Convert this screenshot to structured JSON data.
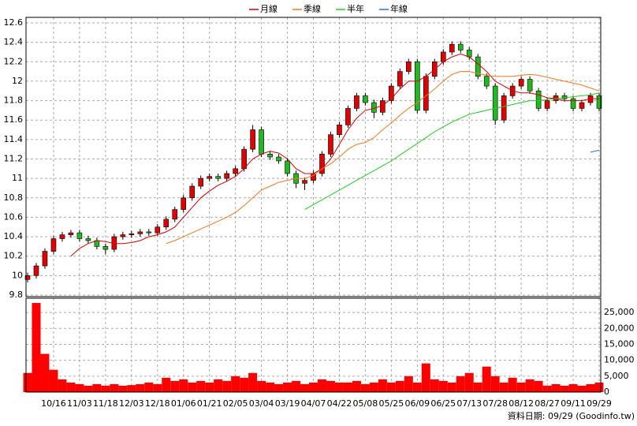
{
  "chart_data": [
    {
      "type": "candlestick",
      "legend": "top",
      "grid": true,
      "up_color": "#e00000",
      "down_color": "#22b822",
      "ylim": [
        9.8,
        12.6
      ],
      "yticks": [
        9.8,
        10,
        10.2,
        10.4,
        10.6,
        10.8,
        11,
        11.2,
        11.4,
        11.6,
        11.8,
        12,
        12.2,
        12.4,
        12.6
      ],
      "open": [
        9.96,
        10.0,
        10.1,
        10.25,
        10.38,
        10.42,
        10.44,
        10.38,
        10.36,
        10.3,
        10.27,
        10.4,
        10.42,
        10.43,
        10.45,
        10.44,
        10.5,
        10.58,
        10.68,
        10.8,
        10.92,
        11.0,
        11.02,
        11.0,
        11.05,
        11.1,
        11.3,
        11.5,
        11.25,
        11.22,
        11.18,
        11.05,
        10.95,
        10.98,
        11.05,
        11.25,
        11.45,
        11.55,
        11.72,
        11.85,
        11.78,
        11.68,
        11.8,
        11.95,
        12.1,
        12.2,
        11.7,
        12.05,
        12.2,
        12.3,
        12.38,
        12.32,
        12.25,
        12.05,
        11.95,
        11.6,
        11.85,
        11.95,
        12.02,
        11.9,
        11.72,
        11.8,
        11.85,
        11.82,
        11.72,
        11.78,
        11.85
      ],
      "close": [
        10.0,
        10.1,
        10.25,
        10.38,
        10.42,
        10.44,
        10.38,
        10.36,
        10.3,
        10.27,
        10.4,
        10.42,
        10.43,
        10.45,
        10.44,
        10.5,
        10.58,
        10.68,
        10.8,
        10.92,
        11.0,
        11.02,
        11.0,
        11.05,
        11.1,
        11.3,
        11.5,
        11.25,
        11.22,
        11.18,
        11.05,
        10.95,
        10.98,
        11.05,
        11.25,
        11.45,
        11.55,
        11.72,
        11.85,
        11.78,
        11.68,
        11.8,
        11.95,
        12.1,
        12.2,
        11.7,
        12.05,
        12.2,
        12.3,
        12.38,
        12.32,
        12.25,
        12.05,
        11.95,
        11.6,
        11.85,
        11.95,
        12.02,
        11.9,
        11.72,
        11.8,
        11.85,
        11.82,
        11.72,
        11.78,
        11.85,
        11.72
      ],
      "high": [
        10.03,
        10.13,
        10.28,
        10.41,
        10.45,
        10.47,
        10.47,
        10.41,
        10.39,
        10.33,
        10.43,
        10.45,
        10.46,
        10.48,
        10.48,
        10.53,
        10.61,
        10.71,
        10.83,
        10.95,
        11.03,
        11.05,
        11.05,
        11.08,
        11.13,
        11.33,
        11.55,
        11.53,
        11.28,
        11.25,
        11.21,
        11.08,
        11.01,
        11.08,
        11.28,
        11.48,
        11.58,
        11.75,
        11.88,
        11.88,
        11.81,
        11.83,
        11.98,
        12.13,
        12.23,
        12.23,
        12.08,
        12.23,
        12.33,
        12.41,
        12.41,
        12.35,
        12.28,
        12.08,
        11.98,
        11.88,
        11.98,
        12.05,
        12.05,
        11.93,
        11.83,
        11.88,
        11.88,
        11.85,
        11.81,
        11.88,
        11.88
      ],
      "low": [
        9.93,
        9.97,
        10.07,
        10.22,
        10.35,
        10.39,
        10.35,
        10.33,
        10.27,
        10.22,
        10.24,
        10.37,
        10.39,
        10.4,
        10.41,
        10.41,
        10.47,
        10.55,
        10.65,
        10.77,
        10.89,
        10.97,
        10.97,
        10.97,
        11.02,
        11.07,
        11.27,
        11.22,
        11.19,
        11.15,
        11.02,
        10.9,
        10.88,
        10.95,
        11.02,
        11.22,
        11.42,
        11.52,
        11.69,
        11.75,
        11.62,
        11.65,
        11.77,
        11.92,
        12.07,
        11.67,
        11.67,
        12.02,
        12.17,
        12.27,
        12.29,
        12.22,
        12.02,
        11.92,
        11.55,
        11.57,
        11.82,
        11.92,
        11.87,
        11.69,
        11.69,
        11.77,
        11.79,
        11.69,
        11.69,
        11.75,
        11.69
      ],
      "series": [
        {
          "name": "月線",
          "color": "#d40000",
          "values": [
            null,
            null,
            null,
            null,
            null,
            10.2,
            10.28,
            10.33,
            10.36,
            10.35,
            10.33,
            10.33,
            10.34,
            10.36,
            10.4,
            10.42,
            10.45,
            10.5,
            10.6,
            10.7,
            10.8,
            10.87,
            10.93,
            10.97,
            11.02,
            11.1,
            11.2,
            11.25,
            11.28,
            11.26,
            11.2,
            11.1,
            11.05,
            11.05,
            11.1,
            11.2,
            11.35,
            11.5,
            11.62,
            11.7,
            11.72,
            11.75,
            11.82,
            11.92,
            12.0,
            12.0,
            12.05,
            12.12,
            12.2,
            12.25,
            12.28,
            12.25,
            12.18,
            12.1,
            12.0,
            11.95,
            11.9,
            11.88,
            11.88,
            11.86,
            11.83,
            11.82,
            11.8,
            11.8,
            11.8,
            11.82,
            11.82
          ]
        },
        {
          "name": "季線",
          "color": "#f07820",
          "values": [
            null,
            null,
            null,
            null,
            null,
            null,
            null,
            null,
            null,
            null,
            null,
            null,
            null,
            null,
            null,
            null,
            10.33,
            10.36,
            10.4,
            10.44,
            10.48,
            10.52,
            10.56,
            10.6,
            10.65,
            10.72,
            10.8,
            10.88,
            10.92,
            10.96,
            10.98,
            11.0,
            11.0,
            11.03,
            11.1,
            11.15,
            11.22,
            11.3,
            11.35,
            11.37,
            11.42,
            11.5,
            11.57,
            11.65,
            11.72,
            11.78,
            11.85,
            11.92,
            12.0,
            12.07,
            12.1,
            12.1,
            12.08,
            12.06,
            12.05,
            12.05,
            12.05,
            12.06,
            12.07,
            12.06,
            12.04,
            12.02,
            12.0,
            11.98,
            11.96,
            11.93,
            11.9
          ]
        },
        {
          "name": "半年",
          "color": "#22cc22",
          "values": [
            null,
            null,
            null,
            null,
            null,
            null,
            null,
            null,
            null,
            null,
            null,
            null,
            null,
            null,
            null,
            null,
            null,
            null,
            null,
            null,
            null,
            null,
            null,
            null,
            null,
            null,
            null,
            null,
            null,
            null,
            null,
            null,
            10.68,
            10.73,
            10.78,
            10.83,
            10.88,
            10.93,
            10.98,
            11.03,
            11.08,
            11.13,
            11.18,
            11.24,
            11.3,
            11.36,
            11.42,
            11.48,
            11.53,
            11.58,
            11.62,
            11.66,
            11.68,
            11.7,
            11.72,
            11.74,
            11.76,
            11.78,
            11.8,
            11.8,
            11.81,
            11.82,
            11.83,
            11.84,
            11.85,
            11.86,
            11.88
          ]
        },
        {
          "name": "年線",
          "color": "#2f6fd0",
          "values": [
            null,
            null,
            null,
            null,
            null,
            null,
            null,
            null,
            null,
            null,
            null,
            null,
            null,
            null,
            null,
            null,
            null,
            null,
            null,
            null,
            null,
            null,
            null,
            null,
            null,
            null,
            null,
            null,
            null,
            null,
            null,
            null,
            null,
            null,
            null,
            null,
            null,
            null,
            null,
            null,
            null,
            null,
            null,
            null,
            null,
            null,
            null,
            null,
            null,
            null,
            null,
            null,
            null,
            null,
            null,
            null,
            null,
            null,
            null,
            null,
            null,
            null,
            null,
            null,
            null,
            11.27,
            11.29
          ]
        }
      ]
    },
    {
      "type": "bar",
      "grid": true,
      "color": "#ff0000",
      "categories": [
        null,
        null,
        null,
        "10/16",
        null,
        null,
        "11/03",
        null,
        null,
        "11/18",
        null,
        null,
        "12/03",
        null,
        null,
        "12/18",
        null,
        null,
        "01/06",
        null,
        null,
        "01/21",
        null,
        null,
        "02/05",
        null,
        null,
        "03/04",
        null,
        null,
        "03/19",
        null,
        null,
        "04/07",
        null,
        null,
        "04/22",
        null,
        null,
        "05/08",
        null,
        null,
        "05/25",
        null,
        null,
        "06/09",
        null,
        null,
        "06/25",
        null,
        null,
        "07/13",
        null,
        null,
        "07/28",
        null,
        null,
        "08/12",
        null,
        null,
        "08/27",
        null,
        null,
        "09/11",
        null,
        null,
        "09/29"
      ],
      "values": [
        6000,
        28000,
        12000,
        7000,
        4000,
        3000,
        2500,
        2000,
        2500,
        2000,
        2500,
        2000,
        2200,
        2500,
        3000,
        2500,
        4500,
        3500,
        4000,
        3000,
        3500,
        3000,
        4000,
        3500,
        5000,
        4500,
        6000,
        3500,
        3000,
        2500,
        3000,
        3500,
        2500,
        3000,
        4000,
        3500,
        3000,
        3000,
        3500,
        2500,
        3000,
        4000,
        3000,
        3500,
        5000,
        3000,
        9000,
        4000,
        3500,
        3000,
        5000,
        6000,
        3000,
        8000,
        5000,
        3000,
        4500,
        3000,
        4000,
        3500,
        2000,
        2500,
        2000,
        2500,
        2000,
        2500,
        3000
      ],
      "ylim": [
        0,
        29000
      ],
      "yticks": [
        0,
        {
          "value": 5000,
          "label": "5,000"
        },
        {
          "value": 10000,
          "label": "10,000"
        },
        {
          "value": 15000,
          "label": "15,000"
        },
        {
          "value": 20000,
          "label": "20,000"
        },
        {
          "value": 25000,
          "label": "25,000"
        }
      ]
    }
  ],
  "footer": "資料日期: 09/29  (Goodinfo.tw)"
}
